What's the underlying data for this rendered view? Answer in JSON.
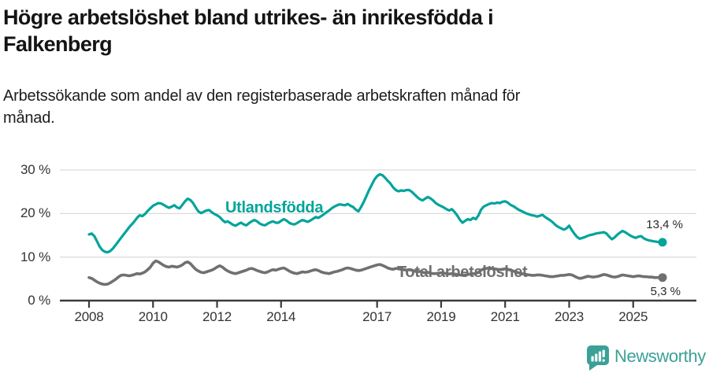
{
  "header": {
    "title_line1": "Högre arbetslöshet bland utrikes- än inrikesfödda i",
    "title_line2": "Falkenberg",
    "subtitle_line1": "Arbetssökande som andel av den registerbaserade arbetskraften månad för",
    "subtitle_line2": "månad."
  },
  "chart_data": {
    "type": "line",
    "x_unit": "month",
    "x_range": [
      "2008-01",
      "2025-12"
    ],
    "x_ticks": [
      2008,
      2010,
      2012,
      2014,
      2017,
      2019,
      2021,
      2023,
      2025
    ],
    "y_ticks": [
      0,
      10,
      20,
      30
    ],
    "y_tick_suffix": " %",
    "ylim": [
      0,
      31
    ],
    "grid": "horizontal",
    "legend": "inline-labels",
    "series": [
      {
        "name": "Utlandsfödda",
        "color": "#00a49b",
        "end_label": "13,4 %",
        "end_value": 13.4,
        "values": [
          15.2,
          15.4,
          14.8,
          13.6,
          12.4,
          11.6,
          11.2,
          11.1,
          11.4,
          12.0,
          12.8,
          13.6,
          14.4,
          15.2,
          16.0,
          16.8,
          17.5,
          18.2,
          19.0,
          19.6,
          19.4,
          19.9,
          20.6,
          21.2,
          21.8,
          22.1,
          22.4,
          22.3,
          22.0,
          21.6,
          21.3,
          21.6,
          21.9,
          21.4,
          21.2,
          22.0,
          22.8,
          23.4,
          23.1,
          22.4,
          21.4,
          20.5,
          20.1,
          20.4,
          20.7,
          20.8,
          20.3,
          19.9,
          19.6,
          19.2,
          18.5,
          18.0,
          18.2,
          17.8,
          17.4,
          17.2,
          17.6,
          17.9,
          17.5,
          17.3,
          17.8,
          18.2,
          18.5,
          18.2,
          17.7,
          17.4,
          17.3,
          17.7,
          18.0,
          18.2,
          17.9,
          17.9,
          18.3,
          18.7,
          18.4,
          17.9,
          17.6,
          17.5,
          17.8,
          18.2,
          18.5,
          18.3,
          18.1,
          18.4,
          18.8,
          19.2,
          19.0,
          19.4,
          19.8,
          20.3,
          20.7,
          21.2,
          21.6,
          21.9,
          22.1,
          22.0,
          21.9,
          22.2,
          21.8,
          21.5,
          20.9,
          20.5,
          21.5,
          22.7,
          24.0,
          25.4,
          26.6,
          27.8,
          28.6,
          29.0,
          28.8,
          28.2,
          27.5,
          26.9,
          26.0,
          25.4,
          25.1,
          25.3,
          25.2,
          25.4,
          25.4,
          25.0,
          24.4,
          23.8,
          23.3,
          23.0,
          23.4,
          23.8,
          23.5,
          23.0,
          22.4,
          22.0,
          21.7,
          21.4,
          21.0,
          20.7,
          21.0,
          20.4,
          19.6,
          18.6,
          17.9,
          18.3,
          18.7,
          18.5,
          19.0,
          18.7,
          19.6,
          20.9,
          21.6,
          21.9,
          22.2,
          22.4,
          22.3,
          22.5,
          22.4,
          22.7,
          22.8,
          22.5,
          22.0,
          21.7,
          21.3,
          20.9,
          20.6,
          20.3,
          20.0,
          19.8,
          19.6,
          19.5,
          19.3,
          19.5,
          19.7,
          19.2,
          18.8,
          18.4,
          17.9,
          17.3,
          16.9,
          16.6,
          16.3,
          16.6,
          17.2,
          16.2,
          15.3,
          14.6,
          14.2,
          14.4,
          14.6,
          14.9,
          15.1,
          15.2,
          15.4,
          15.5,
          15.6,
          15.7,
          15.4,
          14.7,
          14.1,
          14.5,
          15.1,
          15.6,
          16.0,
          15.7,
          15.3,
          14.9,
          14.6,
          14.4,
          14.7,
          14.8,
          14.3,
          14.0,
          13.8,
          13.7,
          13.6,
          13.5,
          13.4,
          13.4
        ]
      },
      {
        "name": "Total arbetslöshet",
        "color": "#707070",
        "end_label": "5,3 %",
        "end_value": 5.3,
        "values": [
          5.3,
          5.1,
          4.7,
          4.3,
          4.0,
          3.8,
          3.7,
          3.8,
          4.1,
          4.5,
          4.9,
          5.4,
          5.8,
          5.9,
          5.8,
          5.7,
          5.8,
          6.0,
          6.2,
          6.1,
          6.3,
          6.6,
          7.1,
          7.7,
          8.6,
          9.1,
          8.9,
          8.5,
          8.1,
          7.8,
          7.7,
          7.9,
          7.8,
          7.7,
          7.9,
          8.2,
          8.7,
          8.9,
          8.5,
          7.8,
          7.2,
          6.8,
          6.5,
          6.4,
          6.6,
          6.8,
          7.0,
          7.3,
          7.7,
          8.0,
          7.7,
          7.2,
          6.8,
          6.5,
          6.3,
          6.2,
          6.4,
          6.6,
          6.8,
          7.0,
          7.3,
          7.4,
          7.2,
          6.9,
          6.7,
          6.5,
          6.4,
          6.6,
          6.9,
          7.1,
          7.0,
          7.2,
          7.4,
          7.5,
          7.2,
          6.8,
          6.5,
          6.3,
          6.2,
          6.4,
          6.6,
          6.5,
          6.6,
          6.8,
          7.0,
          7.1,
          6.9,
          6.6,
          6.4,
          6.3,
          6.2,
          6.4,
          6.6,
          6.7,
          6.9,
          7.1,
          7.4,
          7.5,
          7.4,
          7.2,
          7.0,
          6.9,
          7.0,
          7.2,
          7.4,
          7.6,
          7.8,
          8.0,
          8.2,
          8.3,
          8.1,
          7.8,
          7.5,
          7.3,
          7.2,
          7.4,
          7.3,
          7.2,
          7.1,
          7.0,
          7.1,
          7.0,
          6.8,
          6.6,
          6.7,
          6.5,
          6.4,
          6.5,
          6.3,
          6.2,
          6.2,
          6.3,
          6.4,
          6.3,
          6.2,
          6.1,
          6.2,
          6.1,
          6.0,
          5.9,
          5.8,
          5.9,
          6.0,
          6.1,
          6.2,
          6.2,
          6.5,
          7.0,
          7.3,
          7.4,
          7.5,
          7.4,
          7.3,
          7.2,
          7.1,
          7.2,
          7.3,
          7.2,
          7.0,
          6.8,
          6.6,
          6.4,
          6.2,
          6.1,
          6.0,
          5.9,
          5.8,
          5.8,
          5.9,
          5.9,
          5.8,
          5.7,
          5.6,
          5.5,
          5.5,
          5.6,
          5.7,
          5.8,
          5.8,
          5.9,
          6.0,
          5.9,
          5.6,
          5.3,
          5.1,
          5.2,
          5.4,
          5.6,
          5.5,
          5.4,
          5.5,
          5.6,
          5.8,
          6.0,
          5.9,
          5.7,
          5.5,
          5.4,
          5.5,
          5.7,
          5.9,
          5.8,
          5.7,
          5.6,
          5.5,
          5.6,
          5.7,
          5.6,
          5.5,
          5.5,
          5.4,
          5.4,
          5.3,
          5.3,
          5.3,
          5.3
        ]
      }
    ]
  },
  "footer": {
    "brand": "Newsworthy",
    "logo_icon": "speech-bubble-bar-chart-icon"
  },
  "colors": {
    "accent_teal": "#00a49b",
    "line_gray": "#707070",
    "logo_teal": "#3ba197",
    "axis_text": "#333333",
    "gridline": "#dcdcdc"
  }
}
